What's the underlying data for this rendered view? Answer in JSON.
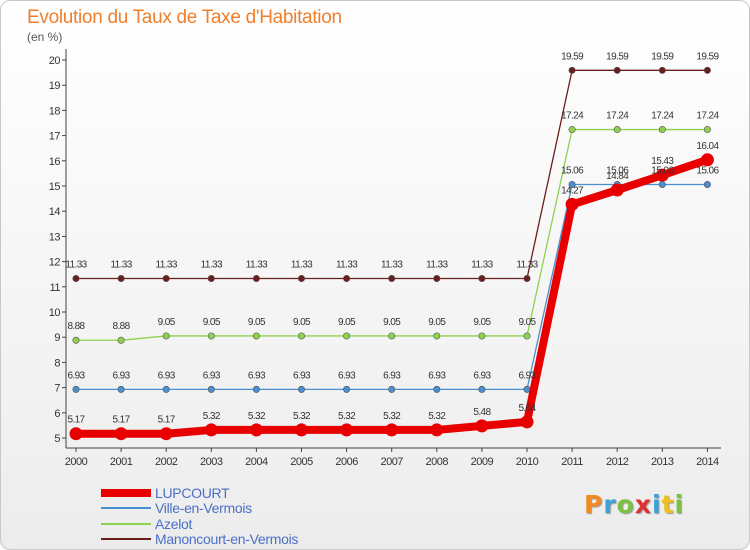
{
  "header": {
    "title": "Evolution du Taux de Taxe d'Habitation",
    "unit": "(en %)"
  },
  "chart_data": {
    "type": "line",
    "title": "Evolution du Taux de Taxe d'Habitation",
    "ylabel": "(en %)",
    "xlabel": "",
    "ylim": [
      5,
      20
    ],
    "yticks": [
      5,
      6,
      7,
      8,
      9,
      10,
      11,
      12,
      13,
      14,
      15,
      16,
      17,
      18,
      19,
      20
    ],
    "grid": false,
    "legend": "bottom-left",
    "x": [
      "2000",
      "2001",
      "2002",
      "2003",
      "2004",
      "2005",
      "2006",
      "2007",
      "2008",
      "2009",
      "2010",
      "2011",
      "2012",
      "2013",
      "2014"
    ],
    "series": [
      {
        "name": "Manoncourt-en-Vermois",
        "color": "#6b1e1e",
        "values": [
          11.33,
          11.33,
          11.33,
          11.33,
          11.33,
          11.33,
          11.33,
          11.33,
          11.33,
          11.33,
          11.33,
          19.59,
          19.59,
          19.59,
          19.59
        ]
      },
      {
        "name": "Azelot",
        "color": "#8fd14f",
        "values": [
          8.88,
          8.88,
          9.05,
          9.05,
          9.05,
          9.05,
          9.05,
          9.05,
          9.05,
          9.05,
          9.05,
          17.24,
          17.24,
          17.24,
          17.24
        ]
      },
      {
        "name": "Ville-en-Vermois",
        "color": "#4a8fcf",
        "values": [
          6.93,
          6.93,
          6.93,
          6.93,
          6.93,
          6.93,
          6.93,
          6.93,
          6.93,
          6.93,
          6.93,
          15.06,
          15.06,
          15.06,
          15.06
        ]
      },
      {
        "name": "LUPCOURT",
        "color": "#e80000",
        "values": [
          5.17,
          5.17,
          5.17,
          5.32,
          5.32,
          5.32,
          5.32,
          5.32,
          5.32,
          5.48,
          5.64,
          14.27,
          14.84,
          15.43,
          16.04
        ]
      }
    ],
    "legend_order": [
      "LUPCOURT",
      "Ville-en-Vermois",
      "Azelot",
      "Manoncourt-en-Vermois"
    ]
  },
  "logo": {
    "letters": [
      "P",
      "r",
      "o",
      "x",
      "i",
      "t",
      "i"
    ],
    "colors": [
      "#f08a24",
      "#3aa3d9",
      "#7cc242",
      "#e03030",
      "#3aa3d9",
      "#f0c020",
      "#7cc242"
    ]
  }
}
